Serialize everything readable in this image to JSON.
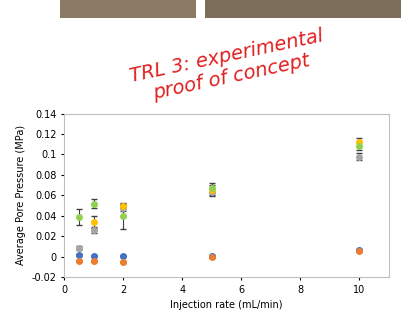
{
  "chart_data": {
    "type": "scatter",
    "annotation": "TRL 3: experimental\nproof of concept",
    "x_label": "Injection rate (mL/min)",
    "y_label": "Average Pore Pressure (MPa)",
    "xlim": [
      0,
      11
    ],
    "xticks": [
      0,
      2,
      4,
      6,
      8,
      10
    ],
    "ylim": [
      -0.02,
      0.14
    ],
    "yticks": [
      -0.02,
      0,
      0.02,
      0.04,
      0.06,
      0.08,
      0.1,
      0.12,
      0.14
    ],
    "grid": false,
    "marker": "o",
    "x": [
      0.5,
      1,
      2,
      5,
      10
    ],
    "series": [
      {
        "color": "#4472c4",
        "values": [
          0.002,
          0.001,
          0.001,
          0.001,
          0.007
        ],
        "errors": [
          0.001,
          0.001,
          0.001,
          0.001,
          0.001
        ]
      },
      {
        "color": "#ed7d31",
        "values": [
          -0.004,
          -0.004,
          -0.005,
          0.0,
          0.006
        ],
        "errors": [
          0.001,
          0.001,
          0.001,
          0.001,
          0.001
        ]
      },
      {
        "color": "#a5a5a5",
        "values": [
          0.009,
          0.026,
          0.048,
          0.063,
          0.098
        ],
        "errors": [
          0.002,
          0.003,
          0.003,
          0.004,
          0.003
        ]
      },
      {
        "color": "#ffc000",
        "values": [
          null,
          0.034,
          0.05,
          0.065,
          0.112
        ],
        "errors": [
          null,
          0.006,
          0.002,
          0.005,
          0.004
        ]
      },
      {
        "color": "#92d050",
        "values": [
          0.039,
          0.052,
          0.04,
          0.067,
          0.108
        ],
        "errors": [
          0.008,
          0.004,
          0.013,
          0.005,
          0.004
        ]
      }
    ]
  }
}
